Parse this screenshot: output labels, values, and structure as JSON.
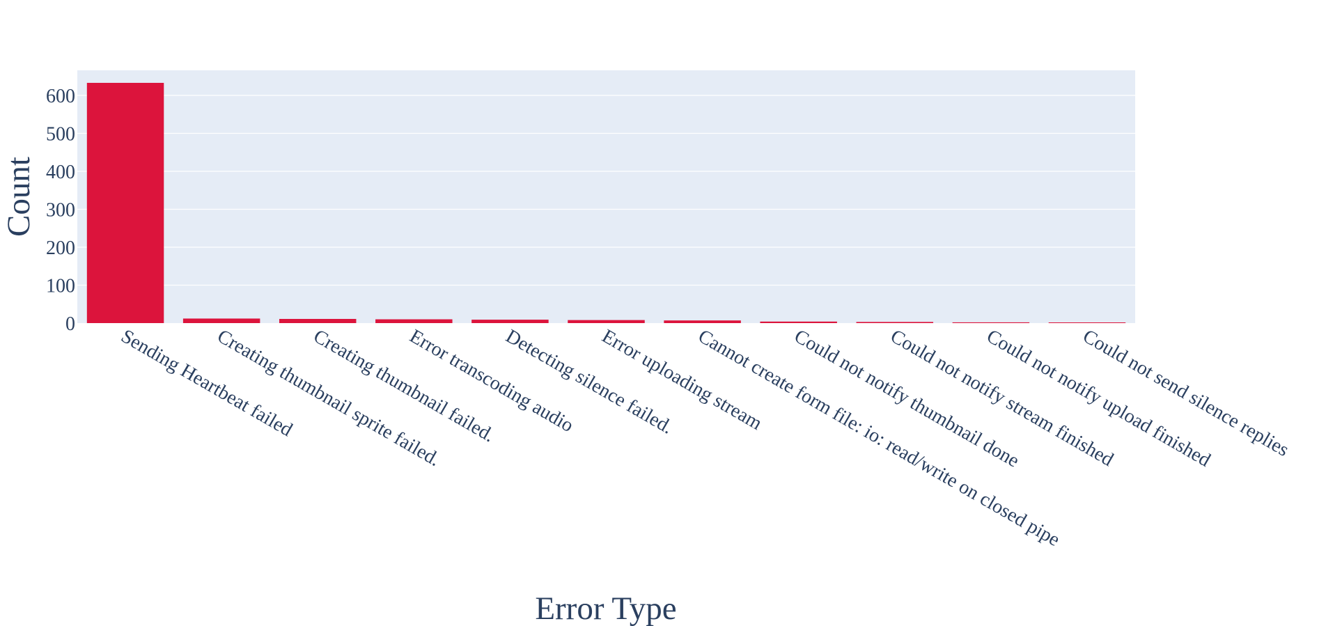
{
  "chart_data": {
    "type": "bar",
    "title": "",
    "xlabel": "Error Type",
    "ylabel": "Count",
    "categories": [
      "Sending Heartbeat failed",
      "Creating thumbnail sprite failed.",
      "Creating thumbnail failed.",
      "Error transcoding audio",
      "Detecting silence failed.",
      "Error uploading stream",
      "Cannot create form file: io: read/write on closed pipe",
      "Could not notify thumbnail done",
      "Could not notify stream finished",
      "Could not notify upload finished",
      "Could not send silence replies"
    ],
    "values": [
      633,
      12,
      11,
      10,
      9,
      8,
      7,
      4,
      3,
      2,
      1
    ],
    "ylim": [
      0,
      666
    ],
    "yticks": [
      0,
      100,
      200,
      300,
      400,
      500,
      600
    ],
    "ytick_labels": [
      "0",
      "100",
      "200",
      "300",
      "400",
      "500",
      "600"
    ],
    "grid": true,
    "legend": "none",
    "colors": {
      "bar": "#dc143c",
      "plot_background": "#e5ecf6",
      "gridline": "#ffffff",
      "text": "#2a3f5f"
    }
  }
}
